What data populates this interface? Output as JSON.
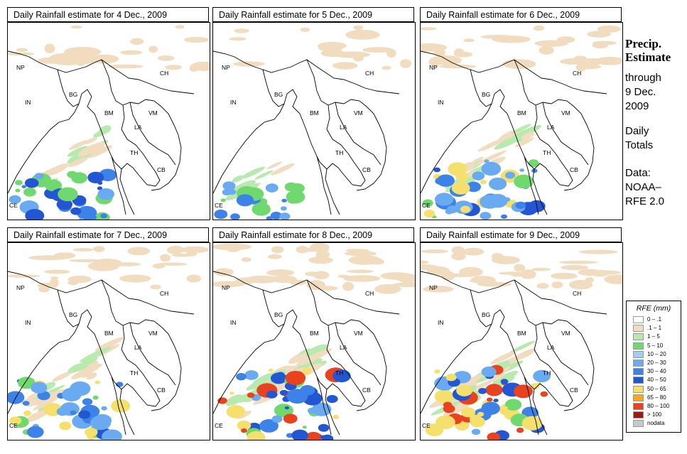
{
  "panels": [
    {
      "title": "Daily Rainfall estimate for  4 Dec., 2009",
      "intensity": 2
    },
    {
      "title": "Daily Rainfall estimate for  5 Dec., 2009",
      "intensity": 1
    },
    {
      "title": "Daily Rainfall estimate for  6 Dec., 2009",
      "intensity": 3
    },
    {
      "title": "Daily Rainfall estimate for  7 Dec., 2009",
      "intensity": 3
    },
    {
      "title": "Daily Rainfall estimate for  8 Dec., 2009",
      "intensity": 4
    },
    {
      "title": "Daily Rainfall estimate for  9 Dec., 2009",
      "intensity": 4
    }
  ],
  "countries": [
    "NP",
    "CH",
    "IN",
    "BG",
    "BM",
    "VM",
    "LA",
    "TH",
    "CB",
    "CE"
  ],
  "side": {
    "title_line1": "Precip.",
    "title_line2": "Estimate",
    "through": "through",
    "date1": "9 Dec.",
    "date2": "2009",
    "daily1": "Daily",
    "daily2": "Totals",
    "data1": "Data:",
    "data2": "NOAA–",
    "data3": "RFE 2.0"
  },
  "legend": {
    "title": "RFE (mm)",
    "items": [
      {
        "label": "0 – .1",
        "color": "#ffffff"
      },
      {
        "label": ".1 – 1",
        "color": "#f2dcc0"
      },
      {
        "label": "1 – 5",
        "color": "#b8eab0"
      },
      {
        "label": "5 – 10",
        "color": "#6fd96f"
      },
      {
        "label": "10 – 20",
        "color": "#a6ccf2"
      },
      {
        "label": "20 – 30",
        "color": "#6aaaf0"
      },
      {
        "label": "30 – 40",
        "color": "#3d82e6"
      },
      {
        "label": "40 – 50",
        "color": "#2356d2"
      },
      {
        "label": "50 – 65",
        "color": "#f5e06e"
      },
      {
        "label": "65 – 80",
        "color": "#f5a623"
      },
      {
        "label": "80 – 100",
        "color": "#e8421e"
      },
      {
        "label": "> 100",
        "color": "#9c1a14"
      },
      {
        "label": "nodata",
        "color": "#c8c8c8"
      }
    ]
  }
}
